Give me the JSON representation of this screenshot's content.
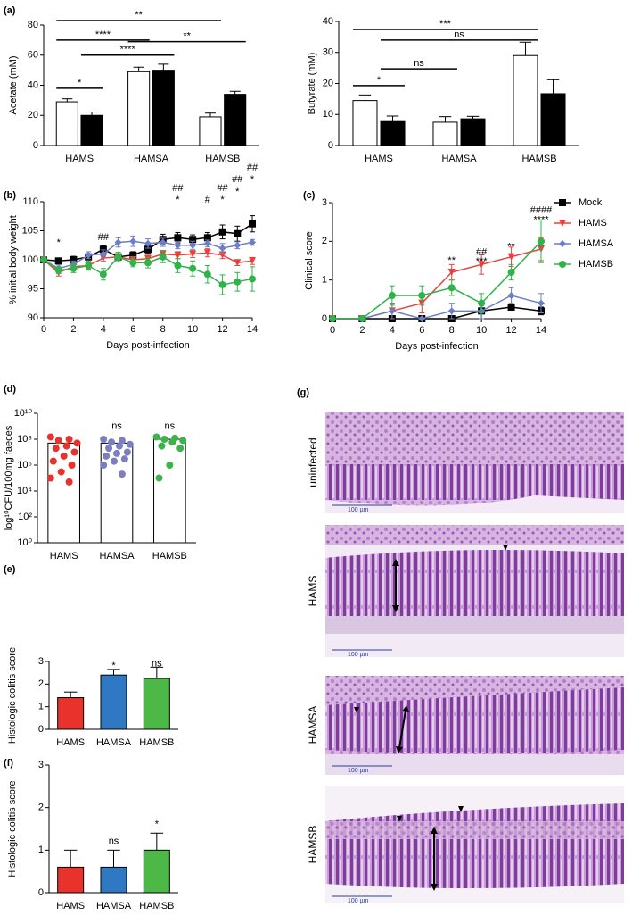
{
  "panels": [
    "(a)",
    "(b)",
    "(c)",
    "(d)",
    "(e)",
    "(f)",
    "(g)"
  ],
  "chart_data": [
    {
      "type": "bar",
      "ylabel": "Acetate (mM)",
      "categories": [
        "HAMS",
        "HAMSA",
        "HAMSB"
      ],
      "series": [
        {
          "color": "#ffffff",
          "values": [
            29,
            49,
            19
          ],
          "errors": [
            2,
            3,
            2.5
          ]
        },
        {
          "color": "#000000",
          "values": [
            20,
            50,
            34
          ],
          "errors": [
            2.2,
            4,
            2
          ]
        }
      ],
      "ylim": [
        0,
        80
      ],
      "yticks": [
        0,
        20,
        40,
        60,
        80
      ],
      "annotations": [
        {
          "text": "*",
          "y": 38,
          "groups": [
            [
              0,
              0
            ],
            [
              0,
              1
            ]
          ]
        },
        {
          "text": "****",
          "y": 70,
          "groups": [
            [
              0,
              0
            ],
            [
              1,
              0
            ]
          ]
        },
        {
          "text": "**",
          "y": 83,
          "groups": [
            [
              0,
              0
            ],
            [
              2,
              0
            ]
          ]
        },
        {
          "text": "****",
          "y": 60,
          "groups": [
            [
              0,
              1
            ],
            [
              1,
              1
            ]
          ]
        },
        {
          "text": "**",
          "y": 69,
          "groups": [
            [
              1,
              0
            ],
            [
              2,
              1
            ]
          ]
        }
      ]
    },
    {
      "type": "bar",
      "ylabel": "Butyrate (mM)",
      "categories": [
        "HAMS",
        "HAMSA",
        "HAMSB"
      ],
      "series": [
        {
          "color": "#ffffff",
          "values": [
            14.5,
            7.5,
            29
          ],
          "errors": [
            1.8,
            1.8,
            4.3
          ]
        },
        {
          "color": "#000000",
          "values": [
            8,
            8.6,
            16.7
          ],
          "errors": [
            1.5,
            0.8,
            4.5
          ]
        }
      ],
      "ylim": [
        0,
        40
      ],
      "yticks": [
        0,
        10,
        20,
        30,
        40
      ],
      "annotations": [
        {
          "text": "*",
          "y": 19.3,
          "groups": [
            [
              0,
              0
            ],
            [
              0,
              1
            ]
          ]
        },
        {
          "text": "ns",
          "y": 24.7,
          "groups": [
            [
              0,
              1
            ],
            [
              1,
              0
            ]
          ]
        },
        {
          "text": "ns",
          "y": 34,
          "groups": [
            [
              0,
              1
            ],
            [
              2,
              0
            ]
          ]
        },
        {
          "text": "***",
          "y": 37.4,
          "groups": [
            [
              0,
              0
            ],
            [
              2,
              0
            ]
          ]
        }
      ]
    },
    {
      "type": "line",
      "ylabel": "% initial body weight",
      "xlabel": "Days post-infection",
      "x": [
        0,
        1,
        2,
        3,
        4,
        5,
        6,
        7,
        8,
        9,
        10,
        11,
        12,
        13,
        14
      ],
      "series": [
        {
          "color": "#000000",
          "marker": "square",
          "values": [
            100,
            99.8,
            100,
            100.5,
            101.8,
            100.5,
            100.8,
            101.8,
            103.5,
            103.8,
            103.5,
            103.8,
            104.8,
            104.5,
            106.2
          ],
          "errors": [
            0,
            0.5,
            0.6,
            0.5,
            0.6,
            0.5,
            0.6,
            0.7,
            0.9,
            0.9,
            0.8,
            0.9,
            1.2,
            1.3,
            1.4
          ]
        },
        {
          "color": "#e8413c",
          "marker": "triangle-down",
          "values": [
            100,
            97.8,
            98.8,
            99,
            100.3,
            100.5,
            100,
            100.2,
            101,
            100.8,
            101,
            101.2,
            100.8,
            99.5,
            99.8
          ],
          "errors": [
            0,
            0.6,
            0.6,
            0.6,
            0.5,
            0.5,
            0.5,
            0.6,
            0.6,
            0.6,
            0.6,
            0.7,
            0.6,
            0.5,
            0.6
          ]
        },
        {
          "color": "#6b7fc4",
          "marker": "diamond",
          "values": [
            100,
            98.5,
            99.2,
            100.8,
            101,
            103,
            103.2,
            102.8,
            103,
            102.5,
            102.5,
            102.8,
            102,
            102.5,
            103
          ],
          "errors": [
            0,
            0.6,
            0.6,
            0.6,
            0.7,
            0.8,
            0.9,
            0.8,
            0.7,
            0.6,
            0.7,
            0.6,
            0.8,
            0.6,
            0.5
          ]
        },
        {
          "color": "#2fb34a",
          "marker": "circle",
          "values": [
            100,
            98.2,
            98.5,
            99,
            97.5,
            100.5,
            99.5,
            99.5,
            100.5,
            99,
            98.5,
            97.5,
            95.7,
            96.2,
            96.7
          ],
          "errors": [
            0,
            0.6,
            0.7,
            0.8,
            1,
            0.8,
            0.7,
            0.9,
            1,
            1.2,
            1.3,
            1.5,
            1.7,
            1.6,
            2.1
          ]
        }
      ],
      "xlim": [
        0,
        14
      ],
      "xticks": [
        0,
        2,
        4,
        6,
        8,
        10,
        12,
        14
      ],
      "ylim": [
        90,
        110
      ],
      "yticks": [
        90,
        95,
        100,
        105,
        110
      ],
      "annotations": [
        {
          "text": "*",
          "x": 1,
          "y": 102.9
        },
        {
          "text": "##",
          "x": 4,
          "y": 103.8
        },
        {
          "text": "##",
          "x": 9,
          "y": 112.3
        },
        {
          "text": "*",
          "x": 9,
          "y": 110.3
        },
        {
          "text": "#",
          "x": 11,
          "y": 110.3
        },
        {
          "text": "##",
          "x": 12,
          "y": 112.3
        },
        {
          "text": "*",
          "x": 12,
          "y": 110.3
        },
        {
          "text": "##",
          "x": 13,
          "y": 113.8
        },
        {
          "text": "*",
          "x": 13,
          "y": 111.7
        },
        {
          "text": "##",
          "x": 14,
          "y": 115.8
        },
        {
          "text": "*",
          "x": 14,
          "y": 113.8
        }
      ]
    },
    {
      "type": "line",
      "ylabel": "Clinical score",
      "xlabel": "Days post-infection",
      "legend": "right",
      "x": [
        0,
        2,
        4,
        6,
        8,
        10,
        12,
        14
      ],
      "series": [
        {
          "name": "Mock",
          "color": "#000000",
          "marker": "square",
          "values": [
            0,
            0,
            0,
            0,
            0,
            0.2,
            0.3,
            0.2
          ],
          "errors": [
            0,
            0,
            0,
            0,
            0,
            0.2,
            0.05,
            0.1
          ]
        },
        {
          "name": "HAMS",
          "color": "#e8413c",
          "marker": "triangle-down",
          "values": [
            0,
            0,
            0.2,
            0.4,
            1.2,
            1.4,
            1.6,
            1.8
          ],
          "errors": [
            0,
            0,
            0.2,
            0.25,
            0.2,
            0.25,
            0.25,
            0.3
          ]
        },
        {
          "name": "HAMSA",
          "color": "#6b7fc4",
          "marker": "diamond",
          "values": [
            0,
            0,
            0.2,
            0,
            0.2,
            0.2,
            0.6,
            0.4
          ],
          "errors": [
            0,
            0,
            0.2,
            0,
            0.2,
            0.2,
            0.2,
            0.25
          ]
        },
        {
          "name": "HAMSB",
          "color": "#2fb34a",
          "marker": "circle",
          "values": [
            0,
            0,
            0.6,
            0.6,
            0.8,
            0.4,
            1.2,
            2.0
          ],
          "errors": [
            0,
            0,
            0.25,
            0.25,
            0.2,
            0.25,
            0.2,
            0.55
          ]
        }
      ],
      "xlim": [
        0,
        14
      ],
      "xticks": [
        0,
        2,
        4,
        6,
        8,
        10,
        12,
        14
      ],
      "ylim": [
        0,
        3
      ],
      "yticks": [
        0,
        1,
        2,
        3
      ],
      "annotations": [
        {
          "text": "**",
          "x": 8,
          "y": 1.5
        },
        {
          "text": "##",
          "x": 10,
          "y": 1.72
        },
        {
          "text": "***",
          "x": 10,
          "y": 1.48
        },
        {
          "text": "**",
          "x": 12,
          "y": 1.85
        },
        {
          "text": "####",
          "x": 14,
          "y": 2.8
        },
        {
          "text": "****",
          "x": 14,
          "y": 2.55
        }
      ]
    },
    {
      "type": "bar",
      "ylabel": "log¹⁰CFU/100mg faeces",
      "categories": [
        "HAMS",
        "HAMSA",
        "HAMSB"
      ],
      "values": [
        50000000,
        50000000,
        100000000
      ],
      "color": "#ffffff",
      "log": true,
      "points": [
        [
          150000000,
          100000000,
          80000000,
          50000000,
          30000000,
          20000000,
          10000000,
          5000000,
          2000000,
          1000000,
          300000,
          100000,
          50000
        ],
        [
          100000000,
          80000000,
          60000000,
          40000000,
          30000000,
          20000000,
          10000000,
          8000000,
          5000000,
          3000000,
          2000000,
          1000000,
          200000
        ],
        [
          150000000,
          120000000,
          100000000,
          80000000,
          60000000,
          30000000,
          20000000,
          1000000,
          100000
        ]
      ],
      "point_colors": [
        "#e8322b",
        "#7b7fc0",
        "#3cb44b"
      ],
      "ylim": [
        1,
        10000000000
      ],
      "yticks": [
        {
          "value": 1,
          "label": "10⁰"
        },
        {
          "value": 100,
          "label": "10²"
        },
        {
          "value": 10000,
          "label": "10⁴"
        },
        {
          "value": 1000000,
          "label": "10⁶"
        },
        {
          "value": 100000000,
          "label": "10⁸"
        },
        {
          "value": 10000000000,
          "label": "10¹⁰"
        }
      ],
      "annotations": [
        {
          "text": "ns",
          "at": 1,
          "y": 1000000000
        },
        {
          "text": "ns",
          "at": 2,
          "y": 1000000000
        }
      ]
    },
    {
      "type": "bar",
      "ylabel": "Histologic colitis score",
      "categories": [
        "HAMS",
        "HAMSA",
        "HAMSB"
      ],
      "values": [
        1.4,
        2.4,
        2.25
      ],
      "errors": [
        0.25,
        0.25,
        0.5
      ],
      "colors": [
        "#e8322b",
        "#2f78c4",
        "#4cb848"
      ],
      "ylim": [
        0,
        3
      ],
      "yticks": [
        0,
        1,
        2,
        3
      ],
      "annotations": [
        {
          "text": "*",
          "at": 1,
          "y": 2.8
        },
        {
          "text": "ns",
          "at": 2,
          "y": 2.9
        }
      ]
    },
    {
      "type": "bar",
      "ylabel": "Histologic colitis score",
      "categories": [
        "HAMS",
        "HAMSA",
        "HAMSB"
      ],
      "values": [
        0.6,
        0.6,
        1.0
      ],
      "errors": [
        0.4,
        0.4,
        0.4
      ],
      "colors": [
        "#e8322b",
        "#2f78c4",
        "#4cb848"
      ],
      "ylim": [
        0,
        3
      ],
      "yticks": [
        0,
        1,
        2,
        3
      ],
      "annotations": [
        {
          "text": "ns",
          "at": 1,
          "y": 1.2
        },
        {
          "text": "*",
          "at": 2,
          "y": 1.6
        }
      ]
    }
  ],
  "histology": {
    "rows": [
      {
        "label": "uninfected",
        "scale": "100 µm"
      },
      {
        "label": "HAMS",
        "scale": "100 µm"
      },
      {
        "label": "HAMSA",
        "scale": "100 µm"
      },
      {
        "label": "HAMSB",
        "scale": "100 µm"
      }
    ]
  }
}
